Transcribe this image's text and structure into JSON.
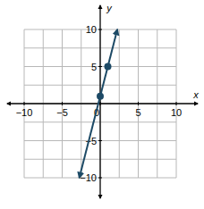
{
  "chart_data": {
    "type": "line",
    "x_label": "x",
    "y_label": "y",
    "xlim": [
      -10,
      10
    ],
    "ylim": [
      -10,
      10
    ],
    "xticks": [
      {
        "value": -10,
        "label": "−10"
      },
      {
        "value": -5,
        "label": "−5"
      },
      0,
      5,
      10
    ],
    "yticks": [
      {
        "value": -10,
        "label": "−10"
      },
      {
        "value": -5,
        "label": "−5"
      },
      5,
      10
    ],
    "grid": true,
    "series": [
      {
        "type": "line",
        "line_style": "arrows",
        "color": "#1d4a66",
        "x": [
          -2.75,
          2.25
        ],
        "values": [
          -10,
          10
        ]
      },
      {
        "type": "scatter",
        "marker": "circle",
        "color": "#1d4a66",
        "x": [
          0,
          1
        ],
        "values": [
          1,
          5
        ]
      }
    ]
  }
}
